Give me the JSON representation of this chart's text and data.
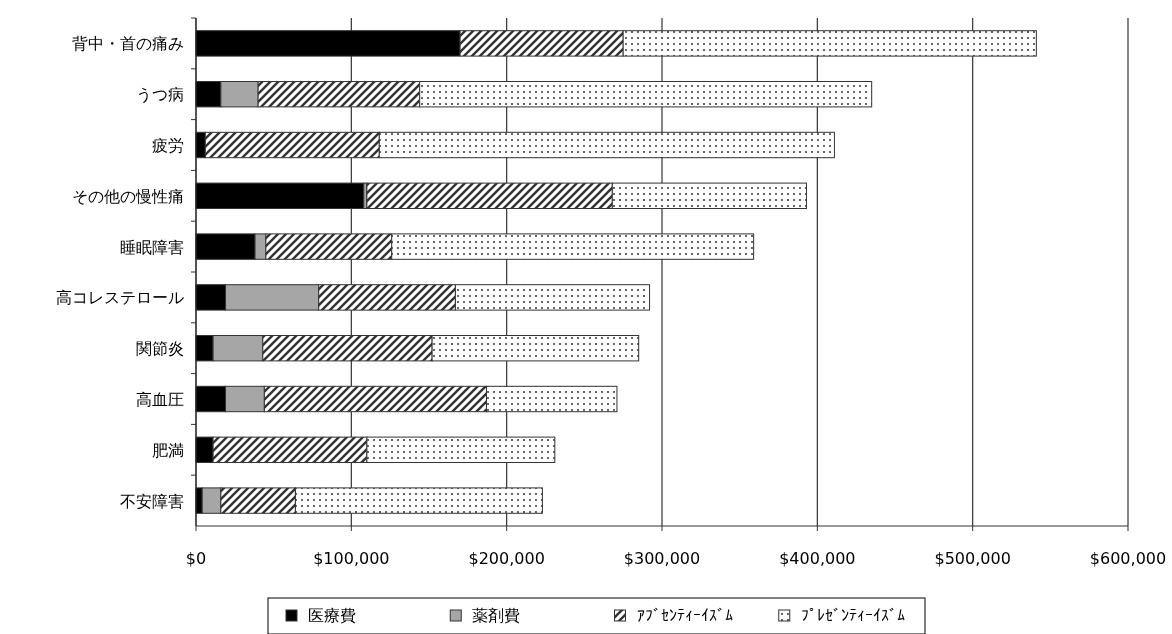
{
  "chart_data": {
    "type": "bar",
    "orientation": "horizontal",
    "stacked": true,
    "categories": [
      "背中・首の痛み",
      "うつ病",
      "疲労",
      "その他の慢性痛",
      "睡眠障害",
      "高コレステロール",
      "関節炎",
      "高血圧",
      "肥満",
      "不安障害"
    ],
    "series": [
      {
        "name": "医療費",
        "color": "#000000",
        "values": [
          170000,
          16000,
          6000,
          108000,
          38000,
          19000,
          11000,
          19000,
          11000,
          4000
        ]
      },
      {
        "name": "薬剤費",
        "color": "#a6a6a6",
        "values": [
          0,
          24000,
          0,
          2000,
          7000,
          60000,
          32000,
          25000,
          0,
          12000
        ]
      },
      {
        "name": "ｱﾌﾞｾﾝﾃｨｰｲｽﾞﾑ",
        "color": "#333333",
        "values": [
          105000,
          104000,
          112000,
          158000,
          81000,
          88000,
          109000,
          143000,
          99000,
          48000
        ]
      },
      {
        "name": "ﾌﾟﾚｾﾞﾝﾃｨｰｲｽﾞﾑ",
        "color": "#333333",
        "values": [
          266000,
          291000,
          293000,
          125000,
          233000,
          125000,
          133000,
          84000,
          121000,
          159000
        ]
      }
    ],
    "xlim": [
      0,
      600000
    ],
    "xticks": [
      {
        "value": 0,
        "label": "$0"
      },
      {
        "value": 100000,
        "label": "$100,000"
      },
      {
        "value": 200000,
        "label": "$200,000"
      },
      {
        "value": 300000,
        "label": "$300,000"
      },
      {
        "value": 400000,
        "label": "$400,000"
      },
      {
        "value": 500000,
        "label": "$500,000"
      },
      {
        "value": 600000,
        "label": "$600,000"
      }
    ],
    "grid": "x",
    "legend": "bottom"
  }
}
